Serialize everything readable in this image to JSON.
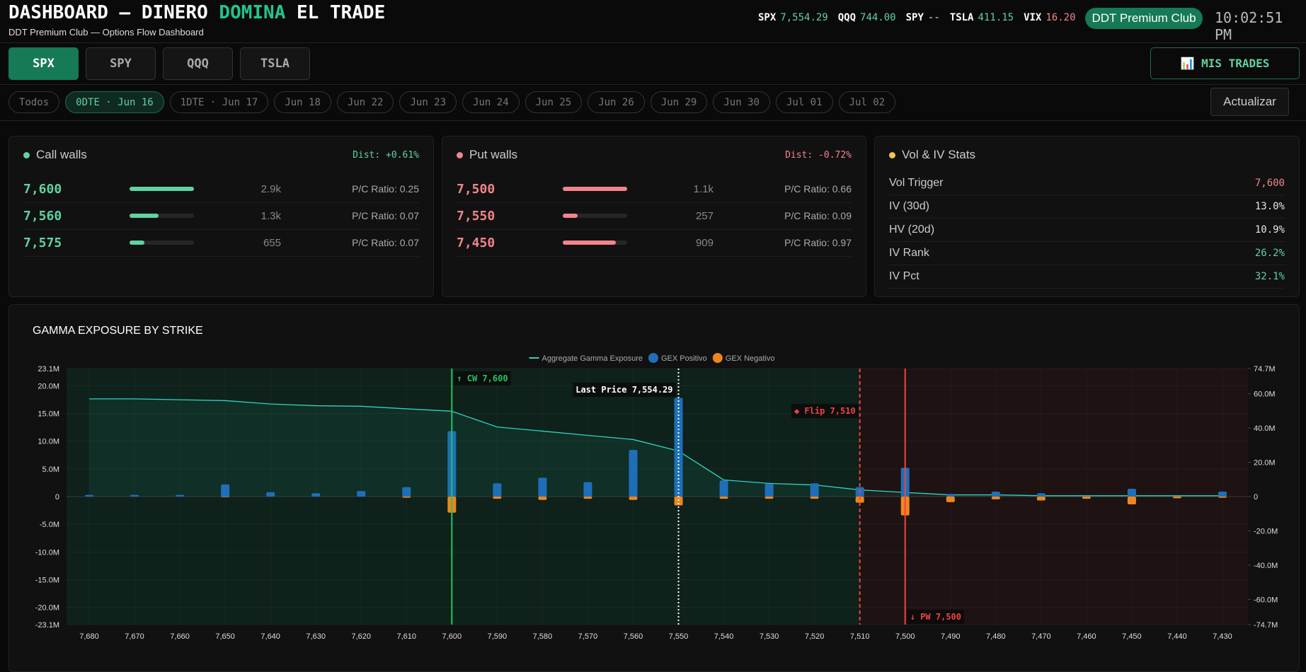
{
  "header": {
    "title": "DASHBOARD — DINERO",
    "title_highlight": "DOMINA",
    "title_end": "EL TRADE",
    "subtitle": "DDT Premium Club — Options Flow Dashboard",
    "tickers": [
      {
        "symbol": "SPX",
        "value": "7,554.29",
        "color": "#5fd3a0"
      },
      {
        "symbol": "QQQ",
        "value": "744.00",
        "color": "#5fd3a0"
      },
      {
        "symbol": "SPY",
        "value": "--",
        "color": "#e5e5e5"
      },
      {
        "symbol": "TSLA",
        "value": "411.15",
        "color": "#5fd3a0"
      },
      {
        "symbol": "VIX",
        "value": "16.20",
        "color": "#f2848a"
      }
    ],
    "club_button": "DDT Premium Club",
    "time": "10:02:51 PM"
  },
  "tabs": {
    "items": [
      "SPX",
      "SPY",
      "QQQ",
      "TSLA"
    ],
    "active": "SPX",
    "action": "📊 MIS TRADES"
  },
  "expiries": {
    "items": [
      "Todos",
      "0DTE · Jun 16",
      "1DTE · Jun 17",
      "Jun 18",
      "Jun 22",
      "Jun 23",
      "Jun 24",
      "Jun 25",
      "Jun 26",
      "Jun 29",
      "Jun 30",
      "Jul 01",
      "Jul 02"
    ],
    "active": "0DTE · Jun 16",
    "refresh": "Actualizar"
  },
  "call_walls": {
    "title": "Call walls",
    "dist": "Dist: +0.61%",
    "color": "#5fd3a0",
    "strikes": [
      "7,600",
      "7,560",
      "7,575"
    ],
    "values": [
      2900,
      1300,
      655
    ],
    "value_labels": [
      "2.9k",
      "1.3k",
      "655"
    ],
    "ratios": [
      "P/C Ratio: 0.25",
      "P/C Ratio: 0.07",
      "P/C Ratio: 0.07"
    ]
  },
  "put_walls": {
    "title": "Put walls",
    "dist": "Dist: -0.72%",
    "color": "#f2848a",
    "strikes": [
      "7,500",
      "7,550",
      "7,450"
    ],
    "values": [
      1100,
      257,
      909
    ],
    "value_labels": [
      "1.1k",
      "257",
      "909"
    ],
    "ratios": [
      "P/C Ratio: 0.66",
      "P/C Ratio: 0.09",
      "P/C Ratio: 0.97"
    ]
  },
  "vol_stats": {
    "title": "Vol & IV Stats",
    "labels": [
      "Vol Trigger",
      "IV (30d)",
      "HV (20d)",
      "IV Rank",
      "IV Pct"
    ],
    "values": [
      "7,600",
      "13.0%",
      "10.9%",
      "26.2%",
      "32.1%"
    ],
    "colors": [
      "#f2848a",
      "#e5e5e5",
      "#e5e5e5",
      "#5fd3a0",
      "#5fd3a0"
    ]
  },
  "chart_data": {
    "type": "combo",
    "title": "GAMMA EXPOSURE BY STRIKE",
    "categories": [
      "7,680",
      "7,670",
      "7,660",
      "7,650",
      "7,640",
      "7,630",
      "7,620",
      "7,610",
      "7,600",
      "7,590",
      "7,580",
      "7,570",
      "7,560",
      "7,550",
      "7,540",
      "7,530",
      "7,520",
      "7,510",
      "7,500",
      "7,490",
      "7,480",
      "7,470",
      "7,460",
      "7,450",
      "7,440",
      "7,430"
    ],
    "series": [
      {
        "name": "Aggregate Gamma Exposure",
        "type": "line",
        "axis": "y2",
        "color": "#2dd4bf",
        "values": [
          57.0,
          57.0,
          56.5,
          56.0,
          54.0,
          53.0,
          52.7,
          51.2,
          49.8,
          40.6,
          38.2,
          35.7,
          33.3,
          26.6,
          9.7,
          7.7,
          6.8,
          3.9,
          2.4,
          1.0,
          1.0,
          0.5,
          0.5,
          0.5,
          0.5,
          0.5
        ]
      },
      {
        "name": "GEX Positivo",
        "type": "bar",
        "color": "#1f6fb8",
        "values": [
          0.3,
          0.3,
          0.3,
          2.2,
          0.8,
          0.6,
          1.0,
          1.7,
          11.8,
          2.4,
          3.4,
          2.6,
          8.4,
          17.8,
          2.9,
          2.3,
          2.4,
          1.7,
          5.2,
          0.5,
          0.9,
          0.6,
          0.1,
          1.4,
          0.1,
          0.9
        ]
      },
      {
        "name": "GEX Negativo",
        "type": "bar",
        "color": "#f0851c",
        "values": [
          0,
          0,
          0,
          -0.1,
          0,
          0,
          0,
          -0.2,
          -2.9,
          -0.4,
          -0.6,
          -0.4,
          -0.6,
          -1.6,
          -0.4,
          -0.4,
          -0.4,
          -1.1,
          -3.4,
          -1.0,
          -0.5,
          -0.7,
          -0.4,
          -1.4,
          -0.3,
          -0.2
        ]
      }
    ],
    "ylim": [
      -23.1,
      23.1
    ],
    "yticks": [
      {
        "value": -23.1,
        "label": "-23.1M"
      },
      {
        "value": -20,
        "label": "-20.0M"
      },
      {
        "value": -15,
        "label": "-15.0M"
      },
      {
        "value": -10,
        "label": "-10.0M"
      },
      {
        "value": -5,
        "label": "-5.0M"
      },
      0,
      {
        "value": 5,
        "label": "5.0M"
      },
      {
        "value": 10,
        "label": "10.0M"
      },
      {
        "value": 15,
        "label": "15.0M"
      },
      {
        "value": 20,
        "label": "20.0M"
      },
      {
        "value": 23.1,
        "label": "23.1M"
      }
    ],
    "y2lim": [
      -74.7,
      74.7
    ],
    "y2ticks": [
      {
        "value": -74.7,
        "label": "-74.7M"
      },
      {
        "value": -60,
        "label": "-60.0M"
      },
      {
        "value": -40,
        "label": "-40.0M"
      },
      {
        "value": -20,
        "label": "-20.0M"
      },
      0,
      {
        "value": 20,
        "label": "20.0M"
      },
      {
        "value": 40,
        "label": "40.0M"
      },
      {
        "value": 60,
        "label": "60.0M"
      },
      {
        "value": 74.7,
        "label": "74.7M"
      }
    ],
    "grid": true,
    "regions": [
      {
        "from": "7,680",
        "to": "7,510",
        "color": "#0e211a"
      },
      {
        "from": "7,510",
        "to": "7,430",
        "color": "#1e1212"
      }
    ],
    "annotations": [
      {
        "text": "↑ CW 7,600",
        "at": "7,600",
        "color": "#22c55e",
        "line": "solid"
      },
      {
        "text": "Last Price 7,554.29",
        "at": "7,550",
        "color": "#ffffff",
        "line": "dotted"
      },
      {
        "text": "◆ Flip 7,510",
        "at": "7,510",
        "color": "#ef4444",
        "line": "dashed"
      },
      {
        "text": "↓ PW 7,500",
        "at": "7,500",
        "color": "#ef4444",
        "line": "solid"
      }
    ]
  }
}
